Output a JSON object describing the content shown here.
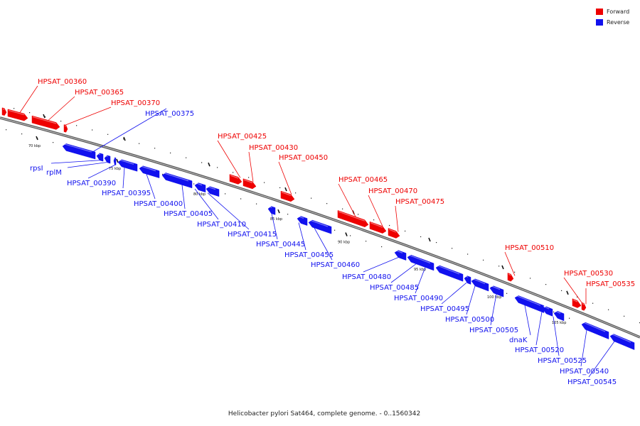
{
  "caption": "Helicobacter pylori Sat464, complete genome. - 0..1560342",
  "colors": {
    "forward": "#ee0000",
    "reverse": "#1111ee",
    "axis": "#888888"
  },
  "legend": [
    {
      "key": "forward",
      "label": "Forward"
    },
    {
      "key": "reverse",
      "label": "Reverse"
    }
  ],
  "ticks": [
    "70 kbp",
    "75 kbp",
    "80 kbp",
    "85 kbp",
    "90 kbp",
    "95 kbp",
    "100 kbp",
    "105 kbp"
  ],
  "genes": [
    {
      "id": "g0",
      "label": "",
      "strand": "forward"
    },
    {
      "id": "g1",
      "label": "HPSAT_00360",
      "strand": "forward"
    },
    {
      "id": "g2",
      "label": "HPSAT_00365",
      "strand": "forward"
    },
    {
      "id": "g3",
      "label": "HPSAT_00370",
      "strand": "forward"
    },
    {
      "id": "g4",
      "label": "HPSAT_00375",
      "strand": "reverse"
    },
    {
      "id": "g5",
      "label": "rpsI",
      "strand": "reverse"
    },
    {
      "id": "g6",
      "label": "rplM",
      "strand": "reverse"
    },
    {
      "id": "g7",
      "label": "HPSAT_00390",
      "strand": "reverse"
    },
    {
      "id": "g8",
      "label": "HPSAT_00395",
      "strand": "reverse"
    },
    {
      "id": "g9",
      "label": "HPSAT_00400",
      "strand": "reverse"
    },
    {
      "id": "g10",
      "label": "HPSAT_00405",
      "strand": "reverse"
    },
    {
      "id": "g11",
      "label": "HPSAT_00410",
      "strand": "reverse"
    },
    {
      "id": "g12",
      "label": "HPSAT_00415",
      "strand": "reverse"
    },
    {
      "id": "g13",
      "label": "HPSAT_00425",
      "strand": "forward"
    },
    {
      "id": "g14",
      "label": "HPSAT_00430",
      "strand": "forward"
    },
    {
      "id": "g15",
      "label": "HPSAT_00445",
      "strand": "reverse"
    },
    {
      "id": "g16",
      "label": "HPSAT_00450",
      "strand": "forward"
    },
    {
      "id": "g17",
      "label": "HPSAT_00455",
      "strand": "reverse"
    },
    {
      "id": "g18",
      "label": "HPSAT_00460",
      "strand": "reverse"
    },
    {
      "id": "g19",
      "label": "HPSAT_00465",
      "strand": "forward"
    },
    {
      "id": "g20",
      "label": "HPSAT_00470",
      "strand": "forward"
    },
    {
      "id": "g21",
      "label": "HPSAT_00475",
      "strand": "forward"
    },
    {
      "id": "g22",
      "label": "HPSAT_00480",
      "strand": "reverse"
    },
    {
      "id": "g23",
      "label": "HPSAT_00485",
      "strand": "reverse"
    },
    {
      "id": "g24",
      "label": "HPSAT_00490",
      "strand": "reverse"
    },
    {
      "id": "g25",
      "label": "HPSAT_00495",
      "strand": "reverse"
    },
    {
      "id": "g26",
      "label": "HPSAT_00500",
      "strand": "reverse"
    },
    {
      "id": "g27",
      "label": "HPSAT_00505",
      "strand": "reverse"
    },
    {
      "id": "g28",
      "label": "HPSAT_00510",
      "strand": "forward"
    },
    {
      "id": "g29",
      "label": "dnaK",
      "strand": "reverse"
    },
    {
      "id": "g30",
      "label": "HPSAT_00520",
      "strand": "reverse"
    },
    {
      "id": "g31",
      "label": "HPSAT_00525",
      "strand": "reverse"
    },
    {
      "id": "g32",
      "label": "HPSAT_00530",
      "strand": "forward"
    },
    {
      "id": "g33",
      "label": "HPSAT_00535",
      "strand": "forward"
    },
    {
      "id": "g34",
      "label": "HPSAT_00540",
      "strand": "reverse"
    },
    {
      "id": "g35",
      "label": "HPSAT_00545",
      "strand": "reverse"
    }
  ]
}
